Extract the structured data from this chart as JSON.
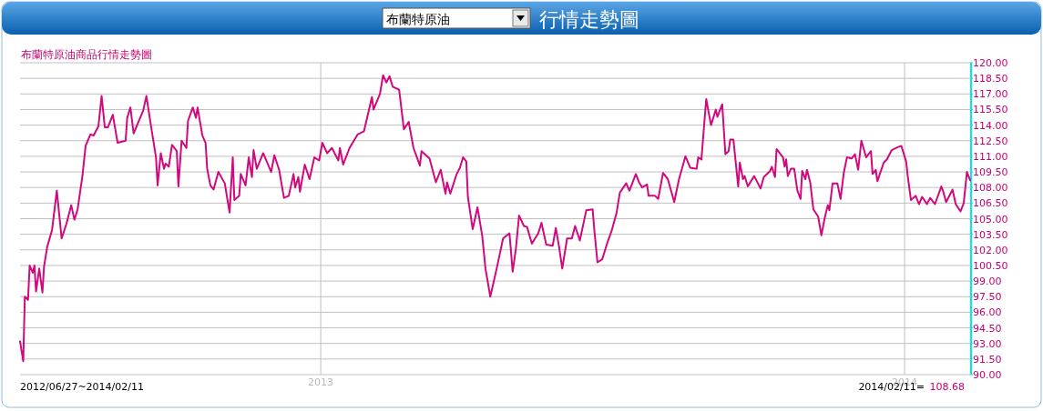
{
  "chart_data": {
    "type": "line",
    "title": "行情走勢圖",
    "subtitle": "布蘭特原油商品行情走勢圖",
    "annotations": [
      "布蘭特原油",
      "2012/06/27~2014/02/11",
      "2014/02/11=",
      "108.68"
    ],
    "xlim": [
      "2012-06-27",
      "2014-02-11"
    ],
    "xticks": [
      {
        "value": "2013-01-01",
        "label": "2013"
      },
      {
        "value": "2014-01-01",
        "label": "2014"
      }
    ],
    "ylim": [
      90,
      120
    ],
    "yticks": [
      {
        "value": 90,
        "label": "90.00"
      },
      {
        "value": 91.5,
        "label": "91.50"
      },
      {
        "value": 93,
        "label": "93.00"
      },
      {
        "value": 94.5,
        "label": "94.50"
      },
      {
        "value": 96,
        "label": "96.00"
      },
      {
        "value": 97.5,
        "label": "97.50"
      },
      {
        "value": 99,
        "label": "99.00"
      },
      {
        "value": 100.5,
        "label": "100.50"
      },
      {
        "value": 102,
        "label": "102.00"
      },
      {
        "value": 103.5,
        "label": "103.50"
      },
      {
        "value": 105,
        "label": "105.00"
      },
      {
        "value": 106.5,
        "label": "106.50"
      },
      {
        "value": 108,
        "label": "108.00"
      },
      {
        "value": 109.5,
        "label": "109.50"
      },
      {
        "value": 111,
        "label": "111.00"
      },
      {
        "value": 112.5,
        "label": "112.50"
      },
      {
        "value": 114,
        "label": "114.00"
      },
      {
        "value": 115.5,
        "label": "115.50"
      },
      {
        "value": 117,
        "label": "117.00"
      },
      {
        "value": 118.5,
        "label": "118.50"
      },
      {
        "value": 120,
        "label": "120.00"
      }
    ],
    "grid": true,
    "series": [
      {
        "color": "#d1097e",
        "x": [
          "2012-06-27",
          "2012-06-29",
          "2012-06-30",
          "2012-07-02",
          "2012-07-03",
          "2012-07-05",
          "2012-07-06",
          "2012-07-07",
          "2012-07-09",
          "2012-07-11",
          "2012-07-12",
          "2012-07-14",
          "2012-07-17",
          "2012-07-20",
          "2012-07-23",
          "2012-07-26",
          "2012-07-29",
          "2012-07-31",
          "2012-08-02",
          "2012-08-05",
          "2012-08-07",
          "2012-08-10",
          "2012-08-12",
          "2012-08-15",
          "2012-08-17",
          "2012-08-19",
          "2012-08-21",
          "2012-08-24",
          "2012-08-27",
          "2012-09-01",
          "2012-09-02",
          "2012-09-04",
          "2012-09-06",
          "2012-09-12",
          "2012-09-14",
          "2012-09-17",
          "2012-09-20",
          "2012-09-21",
          "2012-09-23",
          "2012-09-25",
          "2012-09-26",
          "2012-09-28",
          "2012-09-30",
          "2012-10-03",
          "2012-10-04",
          "2012-10-06",
          "2012-10-09",
          "2012-10-10",
          "2012-10-13",
          "2012-10-15",
          "2012-10-16",
          "2012-10-19",
          "2012-10-21",
          "2012-10-22",
          "2012-10-24",
          "2012-10-26",
          "2012-10-29",
          "2012-11-02",
          "2012-11-05",
          "2012-11-07",
          "2012-11-08",
          "2012-11-11",
          "2012-11-12",
          "2012-11-15",
          "2012-11-17",
          "2012-11-19",
          "2012-11-20",
          "2012-11-22",
          "2012-11-26",
          "2012-12-01",
          "2012-12-03",
          "2012-12-06",
          "2012-12-09",
          "2012-12-12",
          "2012-12-15",
          "2012-12-16",
          "2012-12-18",
          "2012-12-19",
          "2012-12-22",
          "2012-12-25",
          "2012-12-28",
          "2012-12-31",
          "2013-01-02",
          "2013-01-05",
          "2013-01-08",
          "2013-01-12",
          "2013-01-13",
          "2013-01-15",
          "2013-01-19",
          "2013-01-24",
          "2013-01-28",
          "2013-01-30",
          "2013-02-02",
          "2013-02-03",
          "2013-02-07",
          "2013-02-09",
          "2013-02-11",
          "2013-02-13",
          "2013-02-15",
          "2013-02-19",
          "2013-02-22",
          "2013-02-25",
          "2013-02-28",
          "2013-03-04",
          "2013-03-05",
          "2013-03-10",
          "2013-03-14",
          "2013-03-17",
          "2013-03-20",
          "2013-03-21",
          "2013-03-23",
          "2013-03-27",
          "2013-03-29",
          "2013-03-31",
          "2013-04-02",
          "2013-04-03",
          "2013-04-06",
          "2013-04-09",
          "2013-04-12",
          "2013-04-14",
          "2013-04-17",
          "2013-04-21",
          "2013-04-25",
          "2013-04-29",
          "2013-05-01",
          "2013-05-03",
          "2013-05-05",
          "2013-05-08",
          "2013-05-10",
          "2013-05-13",
          "2013-05-17",
          "2013-05-19",
          "2013-05-22",
          "2013-05-26",
          "2013-05-28",
          "2013-05-30",
          "2013-06-01",
          "2013-06-04",
          "2013-06-07",
          "2013-06-09",
          "2013-06-12",
          "2013-06-16",
          "2013-06-20",
          "2013-06-21",
          "2013-06-23",
          "2013-06-26",
          "2013-06-29",
          "2013-07-02",
          "2013-07-05",
          "2013-07-07",
          "2013-07-11",
          "2013-07-13",
          "2013-07-17",
          "2013-07-19",
          "2013-07-21",
          "2013-07-24",
          "2013-07-25",
          "2013-07-29",
          "2013-07-31",
          "2013-08-03",
          "2013-08-06",
          "2013-08-10",
          "2013-08-13",
          "2013-08-17",
          "2013-08-20",
          "2013-08-24",
          "2013-08-25",
          "2013-08-27",
          "2013-08-30",
          "2013-09-02",
          "2013-09-05",
          "2013-09-06",
          "2013-09-09",
          "2013-09-11",
          "2013-09-13",
          "2013-09-14",
          "2013-09-16",
          "2013-09-19",
          "2013-09-20",
          "2013-09-22",
          "2013-09-23",
          "2013-09-25",
          "2013-09-29",
          "2013-10-03",
          "2013-10-05",
          "2013-10-09",
          "2013-10-10",
          "2013-10-12",
          "2013-10-13",
          "2013-10-17",
          "2013-10-18",
          "2013-10-19",
          "2013-10-20",
          "2013-10-22",
          "2013-10-24",
          "2013-10-26",
          "2013-10-28",
          "2013-10-29",
          "2013-10-31",
          "2013-11-01",
          "2013-11-03",
          "2013-11-05",
          "2013-11-08",
          "2013-11-10",
          "2013-11-12",
          "2013-11-14",
          "2013-11-15",
          "2013-11-17",
          "2013-11-20",
          "2013-11-22",
          "2013-11-24",
          "2013-11-26",
          "2013-11-29",
          "2013-12-01",
          "2013-12-03",
          "2013-12-05",
          "2013-12-08",
          "2013-12-11",
          "2013-12-12",
          "2013-12-14",
          "2013-12-15",
          "2013-12-19",
          "2013-12-21",
          "2013-12-24",
          "2013-12-28",
          "2013-12-30",
          "2014-01-01",
          "2014-01-02",
          "2014-01-03",
          "2014-01-05",
          "2014-01-08",
          "2014-01-10",
          "2014-01-12",
          "2014-01-15",
          "2014-01-17",
          "2014-01-20",
          "2014-01-24",
          "2014-01-25",
          "2014-01-27",
          "2014-01-31",
          "2014-02-02",
          "2014-02-05",
          "2014-02-07",
          "2014-02-09",
          "2014-02-11"
        ],
        "values": [
          93.2,
          91.3,
          97.5,
          97.2,
          100.5,
          99.8,
          100.5,
          98.0,
          100.2,
          97.9,
          100.4,
          102.3,
          103.9,
          107.7,
          103.1,
          104.5,
          106.3,
          104.9,
          105.9,
          109.1,
          112.0,
          113.1,
          113.0,
          113.9,
          116.8,
          113.8,
          113.8,
          115.0,
          112.3,
          112.5,
          114.7,
          115.7,
          113.2,
          115.4,
          116.8,
          113.8,
          110.9,
          108.2,
          111.3,
          109.8,
          110.3,
          110.0,
          112.1,
          111.5,
          108.1,
          112.5,
          111.8,
          114.4,
          115.7,
          114.7,
          115.7,
          113.0,
          112.3,
          109.8,
          108.2,
          107.8,
          109.5,
          108.4,
          105.6,
          110.9,
          106.8,
          107.2,
          109.3,
          108.2,
          110.9,
          109.0,
          111.6,
          109.8,
          111.3,
          109.5,
          111.1,
          109.7,
          107.0,
          107.2,
          109.3,
          108.0,
          109.0,
          107.6,
          110.2,
          108.8,
          110.9,
          110.6,
          112.3,
          111.3,
          111.8,
          110.6,
          111.8,
          110.2,
          111.8,
          113.1,
          113.4,
          114.7,
          116.7,
          115.5,
          117.0,
          118.8,
          118.1,
          118.7,
          117.7,
          117.4,
          113.6,
          114.3,
          111.8,
          110.1,
          111.5,
          110.8,
          108.5,
          109.7,
          107.4,
          108.5,
          107.4,
          109.3,
          109.9,
          110.9,
          110.5,
          107.1,
          104.0,
          106.1,
          103.3,
          100.2,
          97.5,
          100.2,
          103.1,
          103.6,
          99.9,
          102.1,
          105.3,
          104.3,
          104.2,
          102.6,
          103.6,
          104.6,
          102.5,
          102.4,
          104.1,
          102.3,
          100.2,
          103.1,
          103.1,
          104.3,
          102.9,
          105.8,
          105.9,
          104.0,
          100.8,
          101.1,
          102.6,
          103.9,
          105.6,
          107.5,
          108.4,
          107.7,
          109.3,
          108.5,
          108.0,
          108.3,
          107.2,
          107.2,
          106.9,
          109.4,
          108.8,
          106.6,
          108.8,
          111.0,
          109.9,
          109.8,
          110.9,
          110.7,
          116.5,
          114.0,
          115.5,
          114.8,
          116.0,
          111.2,
          111.5,
          112.6,
          112.6,
          108.1,
          110.4,
          108.8,
          109.1,
          108.1,
          109.1,
          107.9,
          109.0,
          109.6,
          110.0,
          109.0,
          111.7,
          110.9,
          110.0,
          110.7,
          109.1,
          109.8,
          109.8,
          107.7,
          106.9,
          109.6,
          108.8,
          109.7,
          108.5,
          105.9,
          105.2,
          103.4,
          105.0,
          106.3,
          105.8,
          108.4,
          108.4,
          106.9,
          109.4,
          110.9,
          110.8,
          111.2,
          109.7,
          112.5,
          110.9,
          111.5,
          109.3,
          109.7,
          108.6,
          110.4,
          110.7,
          111.6,
          111.9,
          112.0,
          111.0,
          110.5,
          109.1,
          106.8,
          107.2,
          106.4,
          107.1,
          106.4,
          107.0,
          106.4,
          108.1,
          107.7,
          106.6,
          107.8,
          106.4,
          105.7,
          106.5,
          109.5,
          108.7
        ]
      }
    ]
  }
}
